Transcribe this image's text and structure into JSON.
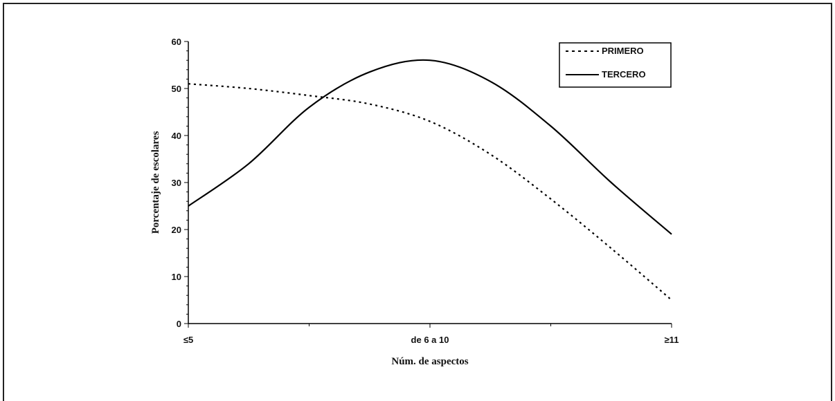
{
  "chart_data": {
    "type": "line",
    "categories": [
      "≤5",
      "de 6 a 10",
      "≥11"
    ],
    "xlabel": "Núm. de aspectos",
    "ylabel": "Porcentaje de escolares",
    "ylim": [
      0,
      60
    ],
    "yticks": [
      0,
      10,
      20,
      30,
      40,
      50,
      60
    ],
    "grid": false,
    "legend_position": "top-right",
    "series": [
      {
        "name": "PRIMERO",
        "style": "dotted",
        "color": "#000000",
        "x": [
          0,
          0.25,
          0.5,
          0.75,
          1.0,
          1.25,
          1.5,
          1.75,
          2.0
        ],
        "values": [
          51,
          50,
          48.5,
          46.7,
          43,
          36,
          26.5,
          16,
          5
        ]
      },
      {
        "name": "TERCERO",
        "style": "solid",
        "color": "#000000",
        "x": [
          0,
          0.25,
          0.5,
          0.75,
          1.0,
          1.25,
          1.5,
          1.75,
          2.0
        ],
        "values": [
          25,
          34,
          46,
          53.5,
          56,
          51.5,
          42,
          30,
          19
        ]
      }
    ]
  }
}
